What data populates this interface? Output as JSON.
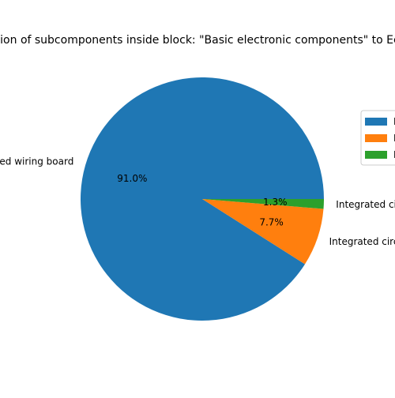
{
  "chart_data": {
    "type": "pie",
    "title": "Contribution of subcomponents inside block: \"Basic electronic components\" to Ecotoxicity",
    "slices": [
      {
        "label": "Printed wiring board",
        "value": 91.0,
        "pct_label": "91.0%",
        "color": "#1f77b4"
      },
      {
        "label": "Integrated circuits",
        "value": 7.7,
        "pct_label": "7.7%",
        "color": "#ff7f0e"
      },
      {
        "label": "Integrated circuits",
        "value": 1.3,
        "pct_label": "1.3%",
        "color": "#2ca02c"
      }
    ],
    "start_angle_deg": 0,
    "direction": "counterclockwise",
    "legend": {
      "placement": "right",
      "entries": [
        "Printed wiring board",
        "Integrated circuits",
        "Integrated circuits"
      ]
    }
  }
}
